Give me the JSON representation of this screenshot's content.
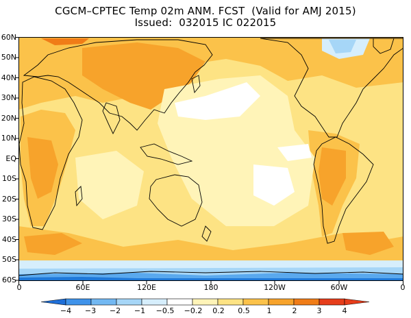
{
  "title": {
    "line1": "CGCM–CPTEC Temp 02m ANM. FCST  (Valid for AMJ 2015)",
    "line2": "Issued:  032015 IC 022015"
  },
  "map": {
    "projection": "cylindrical equidistant",
    "lat_labels": [
      "60N",
      "50N",
      "40N",
      "30N",
      "20N",
      "10N",
      "EQ",
      "10S",
      "20S",
      "30S",
      "40S",
      "50S",
      "60S"
    ],
    "lon_labels": [
      "0",
      "60E",
      "120E",
      "180",
      "120W",
      "60W",
      "0"
    ],
    "colors": {
      "strong_neg": "#1f78d8",
      "mid_neg": "#5aa9ee",
      "weak_neg": "#9fd1f5",
      "very_weak_neg": "#d6eefc",
      "neutral": "#ffffff",
      "weak_pos": "#fff4b8",
      "mild_pos": "#fde384",
      "moderate_pos": "#fbc24a",
      "strong_pos": "#f7a32b",
      "very_strong_pos": "#f07c17",
      "extreme_pos": "#e63d1b",
      "coast": "#000000"
    }
  },
  "colorbar": {
    "labels": [
      "−4",
      "−3",
      "−2",
      "−1",
      "−0.5",
      "−0.2",
      "0.2",
      "0.5",
      "1",
      "2",
      "3",
      "4"
    ],
    "colors": [
      "#1f6fd8",
      "#3f93ea",
      "#72b8f2",
      "#a6d6f7",
      "#d6eefc",
      "#ffffff",
      "#fff4b8",
      "#fde384",
      "#fbc24a",
      "#f7a32b",
      "#f07c17",
      "#e63d1b"
    ]
  }
}
